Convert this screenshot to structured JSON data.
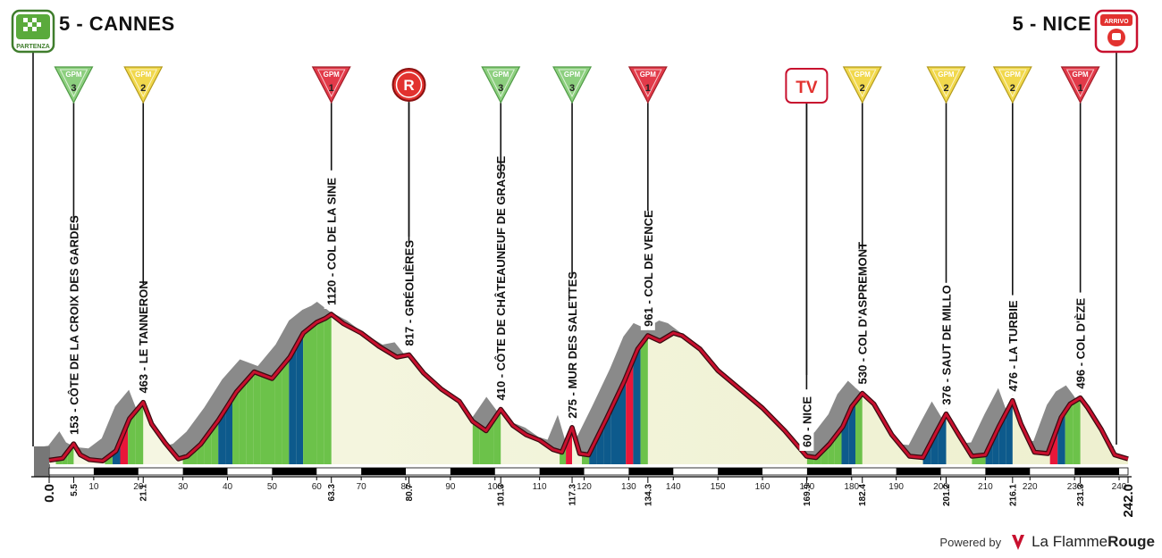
{
  "header": {
    "start_label": "5 - CANNES",
    "finish_label": "5 - NICE",
    "start_badge": "PARTENZA",
    "finish_badge": "ARRIVO"
  },
  "footer": {
    "powered_by": "Powered by",
    "brand_part1": "La Flamme",
    "brand_part2": "Rouge"
  },
  "colors": {
    "profile_fill": "#f3f4dc",
    "gradient_light_green": "#6cc24a",
    "gradient_dark_blue": "#0d5a8c",
    "gradient_red": "#e8173a",
    "gradient_black": "#111111",
    "outline_red": "#c8102e",
    "shadow_grey": "#8a8a8a",
    "gpm3_green": "#8ccf7e",
    "gpm2_yellow": "#f1d84c",
    "gpm1_red": "#e23a49"
  },
  "chart_data": {
    "type": "area",
    "title": "",
    "xlabel": "",
    "ylabel": "",
    "xlim": [
      0,
      242
    ],
    "ylim": [
      0,
      1200
    ],
    "x_ticks": [
      10,
      20,
      30,
      40,
      50,
      60,
      70,
      80,
      90,
      100,
      110,
      120,
      130,
      140,
      150,
      160,
      170,
      180,
      190,
      200,
      210,
      220,
      230,
      240
    ],
    "km_markers": [
      {
        "label": "0.0",
        "km": 0
      },
      {
        "label": "5.5",
        "km": 5.5
      },
      {
        "label": "21.1",
        "km": 21.1
      },
      {
        "label": "63.3",
        "km": 63.3
      },
      {
        "label": "80.7",
        "km": 80.7
      },
      {
        "label": "101.3",
        "km": 101.3
      },
      {
        "label": "117.3",
        "km": 117.3
      },
      {
        "label": "134.3",
        "km": 134.3
      },
      {
        "label": "169.9",
        "km": 169.9
      },
      {
        "label": "182.4",
        "km": 182.4
      },
      {
        "label": "201.2",
        "km": 201.2
      },
      {
        "label": "216.1",
        "km": 216.1
      },
      {
        "label": "231.3",
        "km": 231.3
      },
      {
        "label": "242.0",
        "km": 242
      }
    ],
    "profile": {
      "x": [
        0,
        3,
        5.5,
        7,
        9,
        12,
        15,
        18,
        21.1,
        23,
        26,
        29,
        31,
        34,
        38,
        42,
        46,
        50,
        54,
        57,
        60,
        62,
        63.3,
        66,
        70,
        74,
        78,
        80.7,
        84,
        88,
        92,
        95,
        98,
        101.3,
        104,
        107,
        110,
        113,
        115,
        117.3,
        119,
        121,
        125,
        129,
        132,
        134.3,
        137,
        140,
        142,
        146,
        150,
        155,
        160,
        165,
        169.9,
        172,
        175,
        178,
        180,
        182.4,
        185,
        189,
        193,
        196,
        199,
        201.2,
        204,
        207,
        210,
        213,
        216.1,
        218,
        221,
        224,
        227,
        229,
        231.3,
        233,
        236,
        239,
        242
      ],
      "y": [
        30,
        45,
        153,
        70,
        35,
        25,
        100,
        340,
        463,
        300,
        160,
        40,
        60,
        150,
        330,
        540,
        690,
        640,
        800,
        980,
        1060,
        1090,
        1120,
        1050,
        980,
        880,
        800,
        817,
        680,
        560,
        470,
        320,
        250,
        410,
        290,
        220,
        180,
        110,
        90,
        275,
        80,
        70,
        340,
        620,
        860,
        961,
        920,
        980,
        960,
        860,
        700,
        560,
        420,
        250,
        60,
        50,
        150,
        280,
        430,
        530,
        450,
        220,
        60,
        50,
        240,
        376,
        220,
        60,
        70,
        280,
        476,
        300,
        90,
        80,
        350,
        450,
        496,
        420,
        260,
        70,
        40
      ]
    },
    "climbs": [
      {
        "name": "CÔTE DE LA CROIX DES GARDES",
        "km": 5.5,
        "altitude": 153,
        "category": 3,
        "start_km": 1.5
      },
      {
        "name": "LE TANNERON",
        "km": 21.1,
        "altitude": 463,
        "category": 2,
        "start_km": 12.5
      },
      {
        "name": "COL DE LA SINE",
        "km": 63.3,
        "altitude": 1120,
        "category": 1,
        "start_km": 30
      },
      {
        "name": "GRÉOLIÈRES",
        "km": 80.7,
        "altitude": 817,
        "category": null,
        "start_km": null
      },
      {
        "name": "CÔTE DE CHÂTEAUNEUF DE GRASSE",
        "km": 101.3,
        "altitude": 410,
        "category": 3,
        "start_km": 95
      },
      {
        "name": "MUR DES SALETTES",
        "km": 117.3,
        "altitude": 275,
        "category": 3,
        "start_km": 114.5
      },
      {
        "name": "COL DE VENCE",
        "km": 134.3,
        "altitude": 961,
        "category": 1,
        "start_km": 119.5
      },
      {
        "name": "NICE",
        "km": 169.9,
        "altitude": 60,
        "category": null,
        "start_km": null
      },
      {
        "name": "COL D'ASPREMONT",
        "km": 182.4,
        "altitude": 530,
        "category": 2,
        "start_km": 170
      },
      {
        "name": "SAUT DE MILLO",
        "km": 201.2,
        "altitude": 376,
        "category": 2,
        "start_km": 196
      },
      {
        "name": "LA TURBIE",
        "km": 216.1,
        "altitude": 476,
        "category": 2,
        "start_km": 207
      },
      {
        "name": "COL D'ÈZE",
        "km": 231.3,
        "altitude": 496,
        "category": 1,
        "start_km": 224.5
      }
    ],
    "gpm_label": "GPM",
    "special_markers": [
      {
        "label": "R",
        "km": 80.7,
        "type": "refreshment"
      },
      {
        "label": "TV",
        "km": 169.9,
        "type": "tv"
      }
    ]
  }
}
